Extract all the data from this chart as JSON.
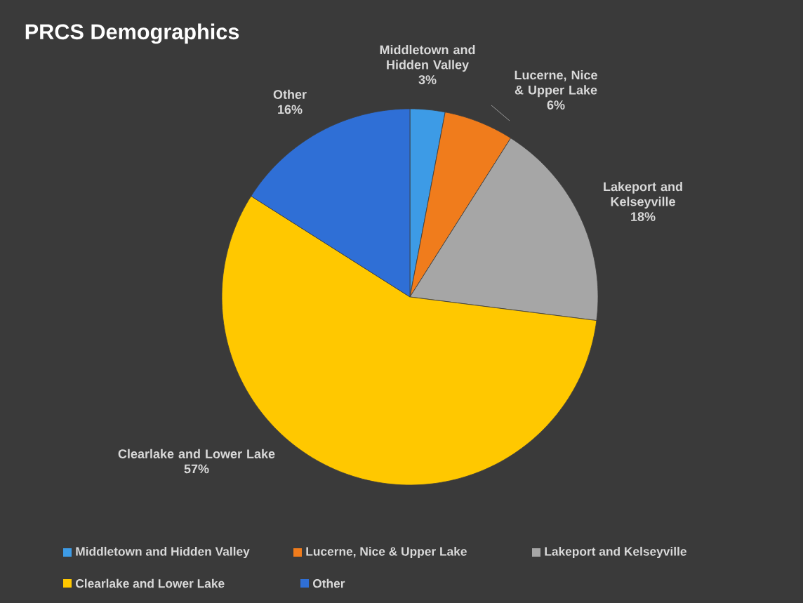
{
  "chart_data": {
    "type": "pie",
    "title": "PRCS Demographics",
    "categories": [
      "Middletown and Hidden Valley",
      "Lucerne, Nice & Upper Lake",
      "Lakeport and Kelseyville",
      "Clearlake and Lower Lake",
      "Other"
    ],
    "values": [
      3,
      6,
      18,
      57,
      16
    ],
    "value_labels": [
      "3%",
      "6%",
      "18%",
      "57%",
      "16%"
    ],
    "colors": [
      "#3d9be6",
      "#f07c1c",
      "#a6a6a6",
      "#ffc800",
      "#2f6fd6"
    ],
    "legend": "bottom"
  }
}
